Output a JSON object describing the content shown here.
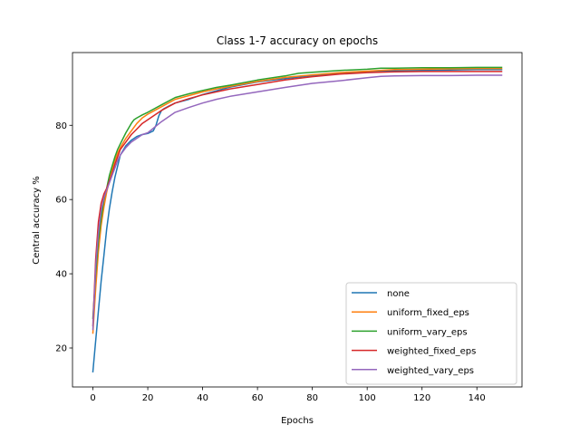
{
  "chart_data": {
    "type": "line",
    "title": "Class 1-7 accuracy on epochs",
    "xlabel": "Epochs",
    "ylabel": "Central accuracy %",
    "xlim": [
      -7.45,
      156.45
    ],
    "ylim": [
      9.5,
      99.6
    ],
    "xticks": [
      0,
      20,
      40,
      60,
      80,
      100,
      120,
      140
    ],
    "yticks": [
      20,
      40,
      60,
      80
    ],
    "grid": false,
    "legend_position": "lower right",
    "series": [
      {
        "name": "none",
        "color": "#1f77b4",
        "x": [
          0,
          1,
          2,
          3,
          4,
          5,
          6,
          7,
          8,
          9,
          10,
          12,
          14,
          16,
          18,
          20,
          22,
          23,
          24,
          25,
          26,
          28,
          30,
          35,
          40,
          45,
          50,
          60,
          70,
          80,
          90,
          100,
          105,
          110,
          120,
          130,
          140,
          149
        ],
        "y": [
          13.6,
          22,
          30,
          38,
          45,
          52,
          57.5,
          62,
          66,
          69,
          72,
          74.5,
          76,
          77,
          77.5,
          77.8,
          78.5,
          80,
          82.5,
          84,
          84.5,
          85.3,
          86,
          87,
          88.3,
          89.3,
          90.3,
          91.7,
          92.6,
          93.4,
          94,
          94.4,
          94.6,
          94.7,
          94.8,
          94.9,
          95,
          95
        ]
      },
      {
        "name": "uniform_fixed_eps",
        "color": "#ff7f0e",
        "x": [
          0,
          1,
          2,
          3,
          4,
          5,
          6,
          7,
          8,
          9,
          10,
          12,
          14,
          16,
          18,
          20,
          25,
          30,
          35,
          40,
          45,
          50,
          60,
          70,
          80,
          90,
          100,
          110,
          120,
          130,
          140,
          149
        ],
        "y": [
          24,
          36,
          46,
          53,
          58,
          62,
          65,
          68,
          70.5,
          72.5,
          74,
          76.5,
          78.5,
          80.5,
          82,
          83,
          85,
          87,
          88,
          89,
          89.8,
          90.5,
          91.8,
          92.9,
          93.6,
          94.2,
          94.6,
          95,
          95.1,
          95.2,
          95.3,
          95.3
        ]
      },
      {
        "name": "uniform_vary_eps",
        "color": "#2ca02c",
        "x": [
          0,
          1,
          2,
          3,
          4,
          5,
          6,
          7,
          8,
          9,
          10,
          12,
          14,
          15,
          16,
          18,
          20,
          25,
          30,
          35,
          40,
          45,
          50,
          60,
          70,
          75,
          80,
          90,
          100,
          105,
          110,
          120,
          130,
          140,
          149
        ],
        "y": [
          28,
          40,
          49,
          55,
          60,
          63,
          66.5,
          69,
          71.5,
          73.5,
          75,
          78,
          80.5,
          81.5,
          82,
          82.8,
          83.5,
          85.5,
          87.5,
          88.5,
          89.4,
          90.2,
          90.8,
          92.2,
          93.3,
          94,
          94.3,
          94.8,
          95.1,
          95.4,
          95.4,
          95.5,
          95.5,
          95.6,
          95.6
        ]
      },
      {
        "name": "weighted_fixed_eps",
        "color": "#d62728",
        "x": [
          0,
          1,
          2,
          3,
          4,
          5,
          6,
          7,
          8,
          9,
          10,
          12,
          14,
          16,
          18,
          20,
          25,
          30,
          35,
          40,
          45,
          50,
          60,
          70,
          80,
          90,
          100,
          110,
          120,
          130,
          140,
          149
        ],
        "y": [
          26,
          44,
          54,
          59,
          61.5,
          63,
          65,
          67,
          69.5,
          71.5,
          73.5,
          75.5,
          77.5,
          79,
          80.5,
          81.5,
          84,
          86,
          87.2,
          88.2,
          89,
          89.8,
          91,
          92.2,
          93.1,
          93.8,
          94.2,
          94.4,
          94.5,
          94.5,
          94.5,
          94.5
        ]
      },
      {
        "name": "weighted_vary_eps",
        "color": "#9467bd",
        "x": [
          0,
          1,
          2,
          3,
          4,
          5,
          6,
          7,
          8,
          9,
          10,
          12,
          14,
          16,
          18,
          20,
          25,
          30,
          35,
          40,
          45,
          50,
          60,
          70,
          80,
          90,
          100,
          105,
          110,
          120,
          130,
          140,
          149
        ],
        "y": [
          25,
          42,
          51,
          57,
          60.5,
          62.5,
          64.5,
          66.5,
          68.5,
          70.5,
          72,
          74,
          75.5,
          76.5,
          77.5,
          78,
          81,
          83.5,
          84.8,
          86,
          87,
          87.8,
          89,
          90.2,
          91.3,
          92,
          92.8,
          93.2,
          93.3,
          93.4,
          93.4,
          93.5,
          93.5
        ]
      }
    ]
  }
}
